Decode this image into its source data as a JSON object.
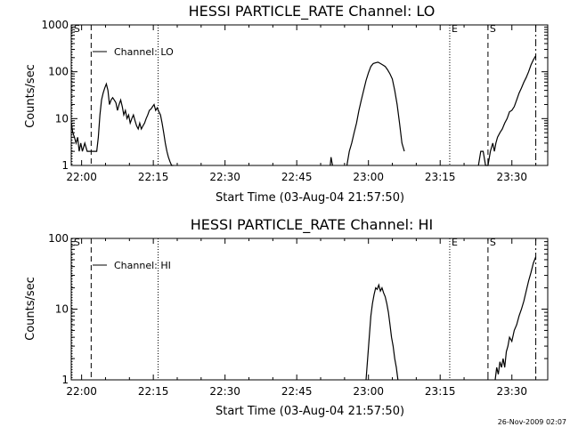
{
  "footer_date": "26-Nov-2009 02:07",
  "chart_data": [
    {
      "type": "line",
      "title": "HESSI PARTICLE_RATE Channel: LO",
      "xlabel": "Start Time (03-Aug-04 21:57:50)",
      "ylabel": "Counts/sec",
      "y_scale": "log",
      "ylim": [
        1,
        1000
      ],
      "xlim": [
        "21:57:50",
        "23:37:30"
      ],
      "x_ticks": [
        "22:00",
        "22:15",
        "22:30",
        "22:45",
        "23:00",
        "23:15",
        "23:30"
      ],
      "y_ticks": [
        "1",
        "10",
        "100",
        "1000"
      ],
      "legend": "Channel: LO",
      "markers": [
        {
          "label": "S",
          "time": "21:58:00",
          "style": "dotted"
        },
        {
          "label": "",
          "time": "22:02:00",
          "style": "dashed"
        },
        {
          "label": "",
          "time": "22:16:00",
          "style": "dotted"
        },
        {
          "label": "E",
          "time": "23:17:00",
          "style": "dotted"
        },
        {
          "label": "S",
          "time": "23:25:00",
          "style": "dashed"
        },
        {
          "label": "",
          "time": "23:35:00",
          "style": "dash-dot"
        }
      ],
      "segments": [
        {
          "x": [
            "21:57:50",
            "21:58:10",
            "21:58:30",
            "21:58:50",
            "21:59:10",
            "21:59:30",
            "21:59:50",
            "22:00:10",
            "22:00:40",
            "22:01:10",
            "22:01:40",
            "22:02:10",
            "22:02:40",
            "22:03:10",
            "22:03:30",
            "22:03:50",
            "22:04:10",
            "22:04:30",
            "22:04:50",
            "22:05:10",
            "22:05:30",
            "22:05:50",
            "22:06:10",
            "22:06:30",
            "22:06:50",
            "22:07:10",
            "22:07:30",
            "22:07:50",
            "22:08:10",
            "22:08:30",
            "22:08:50",
            "22:09:10",
            "22:09:30",
            "22:09:50",
            "22:10:10",
            "22:10:30",
            "22:10:50",
            "22:11:10",
            "22:11:30",
            "22:11:50",
            "22:12:10",
            "22:12:30",
            "22:12:50",
            "22:13:10",
            "22:13:30",
            "22:13:50",
            "22:14:10",
            "22:14:30",
            "22:14:50",
            "22:15:10",
            "22:15:30",
            "22:15:50",
            "22:16:10",
            "22:16:30",
            "22:16:50",
            "22:17:10",
            "22:17:30",
            "22:17:50",
            "22:18:10",
            "22:18:30",
            "22:18:50",
            "22:19:10"
          ],
          "y": [
            8,
            5,
            4,
            3,
            4,
            2,
            3,
            2,
            3,
            2,
            2,
            2,
            2,
            2,
            4,
            12,
            25,
            35,
            45,
            55,
            40,
            20,
            25,
            28,
            25,
            22,
            15,
            20,
            25,
            18,
            12,
            15,
            10,
            12,
            8,
            10,
            12,
            9,
            7,
            6,
            8,
            6,
            7,
            8,
            10,
            12,
            15,
            16,
            18,
            20,
            15,
            17,
            14,
            12,
            8,
            5,
            3,
            2,
            1.5,
            1.2,
            1,
            1
          ]
        },
        {
          "x": [
            "22:52:00",
            "22:52:10",
            "22:52:20",
            "22:52:30"
          ],
          "y": [
            1,
            1.5,
            1.2,
            1
          ]
        },
        {
          "x": [
            "22:55:30",
            "22:56:00",
            "22:56:30",
            "22:57:00",
            "22:57:30",
            "22:58:00",
            "22:58:30",
            "22:59:00",
            "22:59:30",
            "23:00:00",
            "23:00:30",
            "23:01:00",
            "23:01:30",
            "23:02:00",
            "23:02:30",
            "23:03:00",
            "23:03:30",
            "23:04:00",
            "23:04:30",
            "23:05:00",
            "23:05:30",
            "23:06:00",
            "23:06:30",
            "23:07:00",
            "23:07:30"
          ],
          "y": [
            1,
            2,
            3,
            5,
            8,
            15,
            25,
            40,
            65,
            95,
            130,
            150,
            155,
            160,
            150,
            140,
            130,
            110,
            90,
            70,
            40,
            20,
            8,
            3,
            2
          ]
        },
        {
          "x": [
            "23:23:00",
            "23:23:30",
            "23:24:00",
            "23:24:30",
            "23:25:00",
            "23:25:30",
            "23:26:00",
            "23:26:20",
            "23:26:40",
            "23:27:00",
            "23:27:30",
            "23:28:00",
            "23:28:30",
            "23:29:00",
            "23:29:30",
            "23:30:00",
            "23:30:30",
            "23:31:00",
            "23:31:30",
            "23:32:00",
            "23:32:30",
            "23:33:00",
            "23:33:30",
            "23:34:00",
            "23:34:30",
            "23:35:00"
          ],
          "y": [
            1,
            2,
            2,
            1,
            1,
            2,
            3,
            2,
            3,
            4,
            5,
            6,
            8,
            10,
            14,
            15,
            18,
            25,
            35,
            45,
            60,
            75,
            100,
            140,
            180,
            220
          ]
        }
      ]
    },
    {
      "type": "line",
      "title": "HESSI PARTICLE_RATE Channel: HI",
      "xlabel": "Start Time (03-Aug-04 21:57:50)",
      "ylabel": "Counts/sec",
      "y_scale": "log",
      "ylim": [
        1,
        100
      ],
      "xlim": [
        "21:57:50",
        "23:37:30"
      ],
      "x_ticks": [
        "22:00",
        "22:15",
        "22:30",
        "22:45",
        "23:00",
        "23:15",
        "23:30"
      ],
      "y_ticks": [
        "1",
        "10",
        "100"
      ],
      "legend": "Channel: HI",
      "markers": [
        {
          "label": "S",
          "time": "21:58:00",
          "style": "dotted"
        },
        {
          "label": "",
          "time": "22:02:00",
          "style": "dashed"
        },
        {
          "label": "",
          "time": "22:16:00",
          "style": "dotted"
        },
        {
          "label": "E",
          "time": "23:17:00",
          "style": "dotted"
        },
        {
          "label": "S",
          "time": "23:25:00",
          "style": "dashed"
        },
        {
          "label": "",
          "time": "23:35:00",
          "style": "dash-dot"
        }
      ],
      "segments": [
        {
          "x": [
            "22:59:30",
            "22:59:50",
            "23:00:10",
            "23:00:30",
            "23:00:50",
            "23:01:10",
            "23:01:30",
            "23:01:50",
            "23:02:10",
            "23:02:30",
            "23:02:50",
            "23:03:10",
            "23:03:30",
            "23:03:50",
            "23:04:10",
            "23:04:30",
            "23:04:50",
            "23:05:10",
            "23:05:30",
            "23:05:50",
            "23:06:10"
          ],
          "y": [
            1,
            2,
            4,
            8,
            12,
            16,
            20,
            19,
            22,
            18,
            20,
            17,
            15,
            12,
            9,
            6,
            4,
            3,
            2,
            1.5,
            1
          ]
        },
        {
          "x": [
            "23:26:30",
            "23:26:50",
            "23:27:10",
            "23:27:30",
            "23:27:50",
            "23:28:10",
            "23:28:30",
            "23:28:50",
            "23:29:10",
            "23:29:30",
            "23:30:00",
            "23:30:30",
            "23:31:00",
            "23:31:30",
            "23:32:00",
            "23:32:30",
            "23:33:00",
            "23:33:30",
            "23:34:00",
            "23:34:30",
            "23:35:00"
          ],
          "y": [
            1,
            1.5,
            1.2,
            1.8,
            1.5,
            2,
            1.5,
            2.5,
            3,
            4,
            3.5,
            5,
            6,
            8,
            10,
            13,
            18,
            25,
            33,
            45,
            55
          ]
        }
      ]
    }
  ]
}
